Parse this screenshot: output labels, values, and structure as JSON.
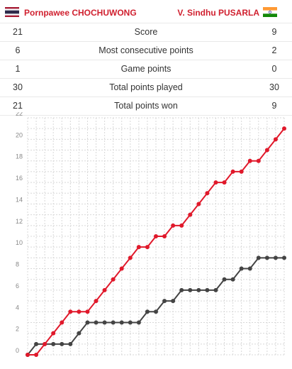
{
  "header": {
    "player_left": "Pornpawee CHOCHUWONG",
    "player_right": "V. Sindhu PUSARLA",
    "flag_left_icon": "thailand-flag-icon",
    "flag_right_icon": "india-flag-icon"
  },
  "stats": [
    {
      "label": "Score",
      "left": "21",
      "right": "9"
    },
    {
      "label": "Most consecutive points",
      "left": "6",
      "right": "2"
    },
    {
      "label": "Game points",
      "left": "1",
      "right": "0"
    },
    {
      "label": "Total points played",
      "left": "30",
      "right": "30"
    },
    {
      "label": "Total points won",
      "left": "21",
      "right": "9"
    }
  ],
  "colors": {
    "accent": "#d0202f",
    "series_left": "#e0192b",
    "series_right": "#444444",
    "grid": "#d8d8d8"
  },
  "chart_data": {
    "type": "line",
    "ylim": [
      0,
      22
    ],
    "yticks": [
      0,
      2,
      4,
      6,
      8,
      10,
      12,
      14,
      16,
      18,
      20,
      22
    ],
    "grid": true,
    "x": [
      0,
      1,
      2,
      3,
      4,
      5,
      6,
      7,
      8,
      9,
      10,
      11,
      12,
      13,
      14,
      15,
      16,
      17,
      18,
      19,
      20,
      21,
      22,
      23,
      24,
      25,
      26,
      27,
      28,
      29,
      30
    ],
    "series": [
      {
        "name": "Pornpawee CHOCHUWONG",
        "values": [
          0,
          0,
          1,
          2,
          3,
          4,
          4,
          4,
          5,
          6,
          7,
          8,
          9,
          10,
          10,
          11,
          11,
          12,
          12,
          13,
          14,
          15,
          16,
          16,
          17,
          17,
          18,
          18,
          19,
          20,
          21
        ]
      },
      {
        "name": "V. Sindhu PUSARLA",
        "values": [
          0,
          1,
          1,
          1,
          1,
          1,
          2,
          3,
          3,
          3,
          3,
          3,
          3,
          3,
          4,
          4,
          5,
          5,
          6,
          6,
          6,
          6,
          6,
          7,
          7,
          8,
          8,
          9,
          9,
          9,
          9
        ]
      }
    ]
  }
}
